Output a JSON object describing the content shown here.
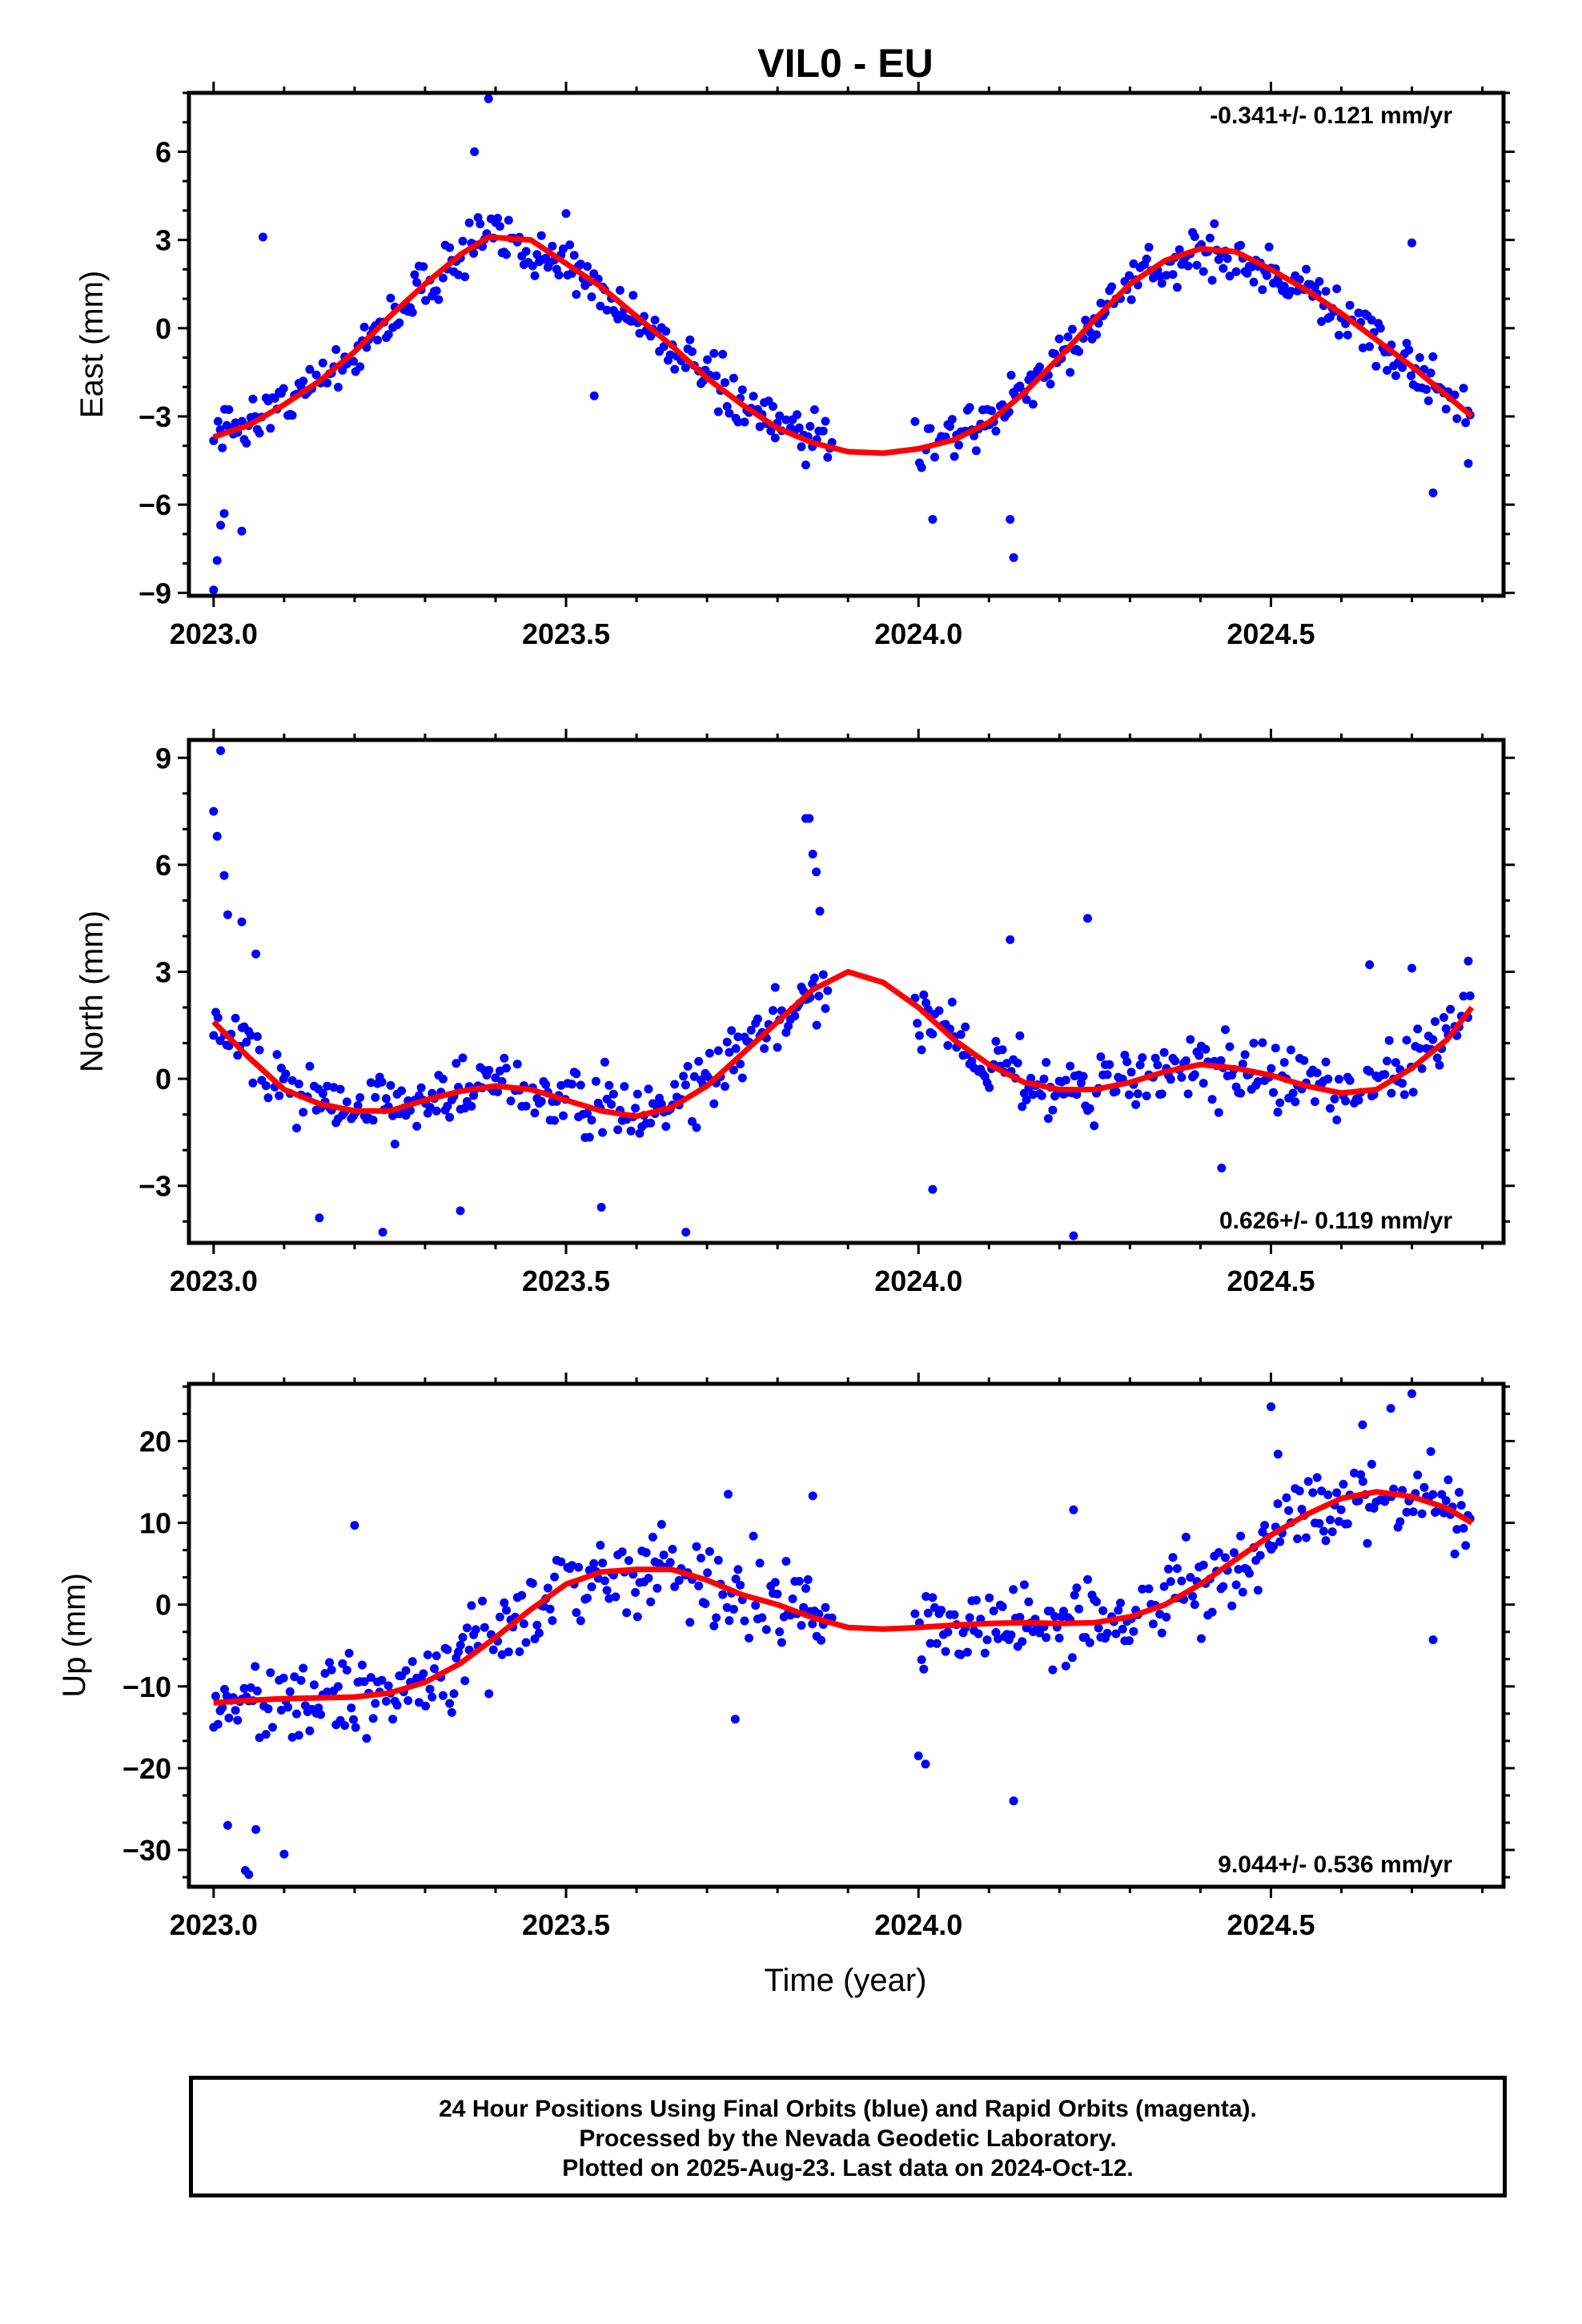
{
  "chart_data": [
    {
      "type": "scatter",
      "title": "VIL0 - EU",
      "ylabel": "East (mm)",
      "xlabel": "",
      "xlim": [
        2022.965,
        2024.83
      ],
      "ylim": [
        -9.1,
        8.0
      ],
      "xticks": [
        "2023.0",
        "2023.5",
        "2024.0",
        "2024.5"
      ],
      "yticks": [
        "−9",
        "−6",
        "−3",
        "0",
        "3",
        "6"
      ],
      "rate_text": "-0.341+/- 0.121 mm/yr",
      "rate_position": "top-right",
      "grid": false,
      "series": [
        {
          "color": "#0000ff",
          "kind": "points",
          "trend": [
            [
              2023.0,
              -3.7
            ],
            [
              2023.1,
              -2.6
            ],
            [
              2023.2,
              -0.8
            ],
            [
              2023.3,
              1.5
            ],
            [
              2023.39,
              3.1
            ],
            [
              2023.5,
              2.2
            ],
            [
              2023.6,
              0.4
            ],
            [
              2023.7,
              -1.7
            ],
            [
              2023.8,
              -3.4
            ],
            [
              2023.95,
              -4.2
            ],
            [
              2024.1,
              -3.2
            ],
            [
              2024.2,
              -1.0
            ],
            [
              2024.3,
              1.5
            ],
            [
              2024.4,
              2.7
            ],
            [
              2024.5,
              2.0
            ],
            [
              2024.6,
              0.5
            ],
            [
              2024.7,
              -1.3
            ],
            [
              2024.785,
              -3.0
            ]
          ],
          "gaps": [
            [
              2023.88,
              2023.995
            ]
          ],
          "noise": 0.9,
          "spikes": [
            [
              2023.0,
              -8.9
            ],
            [
              2023.005,
              -7.9
            ],
            [
              2023.01,
              -6.7
            ],
            [
              2023.015,
              -6.3
            ],
            [
              2023.04,
              -6.9
            ],
            [
              2023.07,
              3.1
            ],
            [
              2023.39,
              7.8
            ],
            [
              2023.37,
              6.0
            ],
            [
              2023.5,
              3.9
            ],
            [
              2023.54,
              -2.3
            ],
            [
              2024.02,
              -6.5
            ],
            [
              2024.13,
              -6.5
            ],
            [
              2024.135,
              -7.8
            ],
            [
              2024.7,
              2.9
            ],
            [
              2024.73,
              -5.6
            ],
            [
              2024.78,
              -4.6
            ]
          ]
        },
        {
          "color": "#ff0000",
          "kind": "line",
          "name": "",
          "x": [
            2023.0,
            2023.05,
            2023.1,
            2023.15,
            2023.2,
            2023.25,
            2023.3,
            2023.35,
            2023.39,
            2023.45,
            2023.5,
            2023.55,
            2023.6,
            2023.65,
            2023.7,
            2023.75,
            2023.8,
            2023.85,
            2023.9,
            2023.95,
            2024.0,
            2024.05,
            2024.1,
            2024.15,
            2024.2,
            2024.25,
            2024.3,
            2024.35,
            2024.4,
            2024.45,
            2024.5,
            2024.55,
            2024.6,
            2024.65,
            2024.7,
            2024.75,
            2024.785
          ],
          "y": [
            -3.7,
            -3.3,
            -2.6,
            -1.8,
            -0.8,
            0.4,
            1.5,
            2.5,
            3.1,
            3.0,
            2.2,
            1.4,
            0.4,
            -0.6,
            -1.7,
            -2.6,
            -3.4,
            -3.9,
            -4.2,
            -4.25,
            -4.1,
            -3.8,
            -3.2,
            -2.2,
            -1.0,
            0.3,
            1.5,
            2.3,
            2.7,
            2.6,
            2.0,
            1.3,
            0.5,
            -0.4,
            -1.3,
            -2.3,
            -3.0
          ]
        }
      ]
    },
    {
      "type": "scatter",
      "title": "",
      "ylabel": "North (mm)",
      "xlabel": "",
      "xlim": [
        2022.965,
        2024.83
      ],
      "ylim": [
        -4.6,
        9.5
      ],
      "xticks": [
        "2023.0",
        "2023.5",
        "2024.0",
        "2024.5"
      ],
      "yticks": [
        "−3",
        "0",
        "3",
        "6",
        "9"
      ],
      "rate_text": "0.626+/- 0.119 mm/yr",
      "rate_position": "bottom-right",
      "grid": false,
      "series": [
        {
          "color": "#0000ff",
          "kind": "points",
          "trend": [
            [
              2023.0,
              1.6
            ],
            [
              2023.1,
              -0.3
            ],
            [
              2023.2,
              -0.9
            ],
            [
              2023.3,
              -0.6
            ],
            [
              2023.4,
              -0.2
            ],
            [
              2023.5,
              -0.6
            ],
            [
              2023.6,
              -1.0
            ],
            [
              2023.7,
              -0.2
            ],
            [
              2023.8,
              1.6
            ],
            [
              2023.9,
              3.0
            ],
            [
              2024.0,
              2.0
            ],
            [
              2024.1,
              0.4
            ],
            [
              2024.2,
              -0.3
            ],
            [
              2024.3,
              -0.1
            ],
            [
              2024.4,
              0.4
            ],
            [
              2024.5,
              0.1
            ],
            [
              2024.6,
              -0.4
            ],
            [
              2024.7,
              0.3
            ],
            [
              2024.785,
              2.0
            ]
          ],
          "gaps": [
            [
              2023.875,
              2023.995
            ]
          ],
          "noise": 0.95,
          "spikes": [
            [
              2023.0,
              7.5
            ],
            [
              2023.005,
              6.8
            ],
            [
              2023.01,
              9.2
            ],
            [
              2023.015,
              5.7
            ],
            [
              2023.02,
              4.6
            ],
            [
              2023.04,
              4.4
            ],
            [
              2023.06,
              3.5
            ],
            [
              2023.15,
              -3.9
            ],
            [
              2023.24,
              -4.3
            ],
            [
              2023.35,
              -3.7
            ],
            [
              2023.55,
              -3.6
            ],
            [
              2023.67,
              -4.3
            ],
            [
              2023.84,
              7.3
            ],
            [
              2023.845,
              7.3
            ],
            [
              2023.85,
              6.3
            ],
            [
              2023.855,
              5.8
            ],
            [
              2023.86,
              4.7
            ],
            [
              2024.02,
              -3.1
            ],
            [
              2024.13,
              3.9
            ],
            [
              2024.22,
              -4.4
            ],
            [
              2024.24,
              4.5
            ],
            [
              2024.43,
              -2.5
            ],
            [
              2024.64,
              3.2
            ],
            [
              2024.7,
              3.1
            ],
            [
              2024.78,
              3.3
            ]
          ]
        },
        {
          "color": "#ff0000",
          "kind": "line",
          "name": "",
          "x": [
            2023.0,
            2023.05,
            2023.1,
            2023.15,
            2023.2,
            2023.25,
            2023.3,
            2023.35,
            2023.4,
            2023.45,
            2023.5,
            2023.55,
            2023.6,
            2023.65,
            2023.7,
            2023.75,
            2023.8,
            2023.85,
            2023.9,
            2023.95,
            2024.0,
            2024.05,
            2024.1,
            2024.15,
            2024.2,
            2024.25,
            2024.3,
            2024.35,
            2024.4,
            2024.45,
            2024.5,
            2024.55,
            2024.6,
            2024.65,
            2024.7,
            2024.75,
            2024.785
          ],
          "y": [
            1.6,
            0.6,
            -0.3,
            -0.7,
            -0.9,
            -0.9,
            -0.6,
            -0.35,
            -0.2,
            -0.3,
            -0.6,
            -0.9,
            -1.05,
            -0.8,
            -0.2,
            0.7,
            1.6,
            2.5,
            3.0,
            2.7,
            2.0,
            1.1,
            0.4,
            -0.1,
            -0.3,
            -0.3,
            -0.1,
            0.2,
            0.4,
            0.3,
            0.1,
            -0.2,
            -0.4,
            -0.3,
            0.3,
            1.1,
            2.0
          ]
        }
      ]
    },
    {
      "type": "scatter",
      "title": "",
      "ylabel": "Up (mm)",
      "xlabel": "Time (year)",
      "xlim": [
        2022.965,
        2024.83
      ],
      "ylim": [
        -34.5,
        27.0
      ],
      "xticks": [
        "2023.0",
        "2023.5",
        "2024.0",
        "2024.5"
      ],
      "yticks": [
        "−30",
        "−20",
        "−10",
        "0",
        "10",
        "20"
      ],
      "rate_text": "9.044+/- 0.536 mm/yr",
      "rate_position": "bottom-right",
      "grid": false,
      "series": [
        {
          "color": "#0000ff",
          "kind": "points",
          "trend": [
            [
              2023.0,
              -12
            ],
            [
              2023.1,
              -11.5
            ],
            [
              2023.2,
              -11.3
            ],
            [
              2023.3,
              -9.5
            ],
            [
              2023.4,
              -4
            ],
            [
              2023.5,
              2.5
            ],
            [
              2023.6,
              4.3
            ],
            [
              2023.7,
              3.0
            ],
            [
              2023.8,
              0
            ],
            [
              2023.9,
              -2.8
            ],
            [
              2024.0,
              -2.8
            ],
            [
              2024.1,
              -2.3
            ],
            [
              2024.2,
              -2.3
            ],
            [
              2024.3,
              -1.5
            ],
            [
              2024.4,
              2.5
            ],
            [
              2024.5,
              8.5
            ],
            [
              2024.6,
              13
            ],
            [
              2024.7,
              13.2
            ],
            [
              2024.785,
              10
            ]
          ],
          "gaps": [
            [
              2023.88,
              2023.995
            ]
          ],
          "noise": 5.0,
          "spikes": [
            [
              2023.0,
              -15
            ],
            [
              2023.02,
              -27
            ],
            [
              2023.05,
              -33
            ],
            [
              2023.045,
              -32.5
            ],
            [
              2023.06,
              -27.5
            ],
            [
              2023.1,
              -30.5
            ],
            [
              2023.2,
              9.7
            ],
            [
              2023.73,
              13.5
            ],
            [
              2023.74,
              -14
            ],
            [
              2023.85,
              13.3
            ],
            [
              2024.0,
              -18.5
            ],
            [
              2024.01,
              -19.5
            ],
            [
              2024.135,
              -24
            ],
            [
              2024.22,
              11.6
            ],
            [
              2024.5,
              24.2
            ],
            [
              2024.51,
              18.4
            ],
            [
              2024.63,
              22
            ],
            [
              2024.67,
              24
            ],
            [
              2024.7,
              25.8
            ],
            [
              2024.73,
              -4.3
            ]
          ]
        },
        {
          "color": "#ff0000",
          "kind": "line",
          "name": "",
          "x": [
            2023.0,
            2023.05,
            2023.1,
            2023.15,
            2023.2,
            2023.25,
            2023.3,
            2023.35,
            2023.4,
            2023.45,
            2023.5,
            2023.55,
            2023.6,
            2023.65,
            2023.7,
            2023.75,
            2023.8,
            2023.85,
            2023.9,
            2023.95,
            2024.0,
            2024.05,
            2024.1,
            2024.15,
            2024.2,
            2024.25,
            2024.3,
            2024.35,
            2024.4,
            2024.45,
            2024.5,
            2024.55,
            2024.6,
            2024.65,
            2024.7,
            2024.75,
            2024.785
          ],
          "y": [
            -12,
            -11.7,
            -11.5,
            -11.4,
            -11.3,
            -10.8,
            -9.5,
            -7.2,
            -4,
            -0.6,
            2.5,
            4,
            4.3,
            4.3,
            3,
            1.2,
            0,
            -1.6,
            -2.8,
            -3,
            -2.8,
            -2.5,
            -2.3,
            -2.2,
            -2.3,
            -2.2,
            -1.5,
            0,
            2.5,
            5.5,
            8.5,
            11,
            13,
            13.8,
            13.2,
            11.8,
            10
          ]
        }
      ]
    }
  ],
  "footer": {
    "line1": "24 Hour Positions Using Final Orbits (blue) and Rapid Orbits (magenta).",
    "line2": "Processed by the Nevada Geodetic Laboratory.",
    "line3": "Plotted on 2025-Aug-23. Last data on 2024-Oct-12."
  }
}
